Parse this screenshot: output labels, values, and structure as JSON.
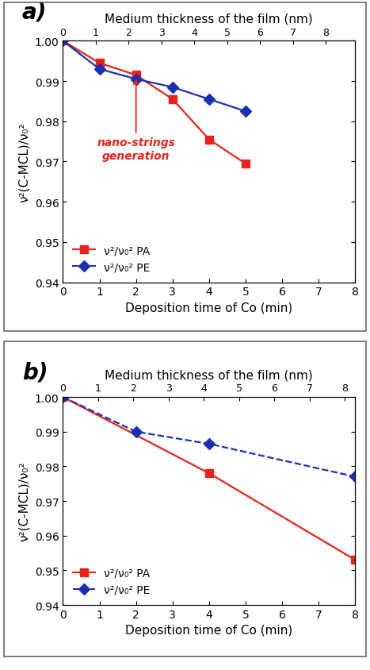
{
  "chart_data": [
    {
      "type": "line",
      "title": "a)",
      "x_label": "Deposition time of Co (min)",
      "x2_label": "Medium thickness of the film (nm)",
      "y_label": "ν²(C-MCL)/ν₀²",
      "xlim": [
        0,
        8
      ],
      "xticks": [
        0,
        1,
        2,
        3,
        4,
        5,
        6,
        7,
        8
      ],
      "x2lim": [
        0,
        8.9
      ],
      "x2ticks": [
        0,
        1,
        2,
        3,
        4,
        5,
        6,
        7,
        8
      ],
      "ylim": [
        0.94,
        1.0
      ],
      "yticks": [
        0.94,
        0.95,
        0.96,
        0.97,
        0.98,
        0.99,
        {
          "value": 1.0,
          "label": "1.00"
        }
      ],
      "legend": "lower left",
      "series": [
        {
          "name": "ν²/ν₀² PA",
          "color": "#e5231b",
          "marker": "s",
          "line_style": "solid",
          "x": [
            0,
            1,
            2,
            3,
            4,
            5
          ],
          "values": [
            1.0,
            0.9945,
            0.9915,
            0.9855,
            0.9755,
            0.9695
          ]
        },
        {
          "name": "ν²/ν₀² PE",
          "color": "#1c2fb0",
          "marker": "D",
          "line_style": "solid",
          "x": [
            0,
            1,
            2,
            3,
            4,
            5
          ],
          "values": [
            1.0,
            0.993,
            0.9905,
            0.9885,
            0.9855,
            0.9825
          ]
        }
      ],
      "annotation": {
        "text": "nano-strings\ngeneration",
        "x": 2,
        "y": 0.9912,
        "color": "#e5231b"
      }
    },
    {
      "type": "line",
      "title": "b)",
      "x_label": "Deposition time of Co (min)",
      "x2_label": "Medium thickness of the film (nm)",
      "y_label": "ν²(C-MCL)/ν₀²",
      "xlim": [
        0,
        8
      ],
      "xticks": [
        0,
        1,
        2,
        3,
        4,
        5,
        6,
        7,
        8
      ],
      "x2lim": [
        0,
        8.3
      ],
      "x2ticks": [
        0,
        1,
        2,
        3,
        4,
        5,
        6,
        7,
        8
      ],
      "ylim": [
        0.94,
        1.0
      ],
      "yticks": [
        0.94,
        0.95,
        0.96,
        0.97,
        0.98,
        0.99,
        {
          "value": 1.0,
          "label": "1.00"
        }
      ],
      "legend": "lower left",
      "series": [
        {
          "name": "ν²/ν₀² PA",
          "color": "#e5231b",
          "marker": "s",
          "line_style": "solid",
          "x": [
            0,
            4,
            8
          ],
          "values": [
            1.0,
            0.978,
            0.953
          ]
        },
        {
          "name": "ν²/ν₀² PE",
          "color": "#1c2fb0",
          "marker": "D",
          "line_style": "dashed",
          "x": [
            0,
            2,
            4,
            8
          ],
          "values": [
            1.0,
            0.99,
            0.9865,
            0.977
          ]
        }
      ]
    }
  ]
}
